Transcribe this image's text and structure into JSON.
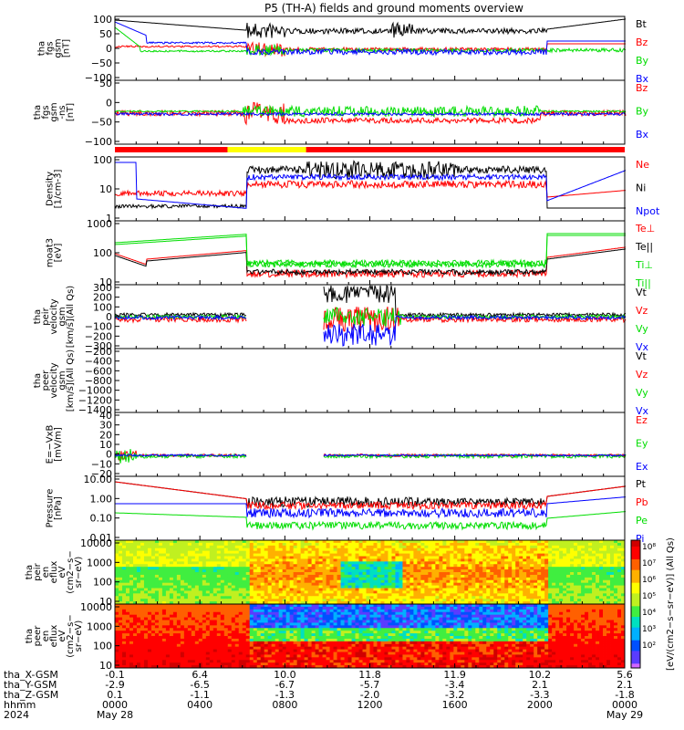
{
  "title": "P5 (TH-A) fields and ground moments overview",
  "colors": {
    "black": "#000000",
    "red": "#ff0000",
    "green": "#00dd00",
    "blue": "#0000ff",
    "yellow": "#ffff00"
  },
  "chart_data": {
    "type": "line",
    "x_axis": {
      "time_label": "hhmm",
      "year": "2024",
      "ticks": [
        "0000",
        "0400",
        "0800",
        "1200",
        "1600",
        "2000",
        "0000"
      ],
      "dates": [
        "May 28",
        "",
        "",
        "",
        "",
        "",
        "May 29"
      ],
      "ephemeris": [
        {
          "name": "tha_X-GSM",
          "values": [
            "-0.1",
            "6.4",
            "10.0",
            "11.8",
            "11.9",
            "10.2",
            "5.6"
          ]
        },
        {
          "name": "tha_Y-GSM",
          "values": [
            "-2.9",
            "-6.5",
            "-6.7",
            "-5.7",
            "-3.4",
            "2.1",
            "2.1"
          ]
        },
        {
          "name": "tha_Z-GSM",
          "values": [
            "0.1",
            "-1.1",
            "-1.3",
            "-2.0",
            "-3.2",
            "-3.3",
            "-1.8"
          ]
        }
      ]
    },
    "panels": [
      {
        "id": "fgs",
        "ylabel": [
          "tha",
          "fgs",
          "gsm",
          "[nT]"
        ],
        "ylim": [
          -100,
          100
        ],
        "ticks": [
          "100",
          "50",
          "0",
          "−50",
          "−100"
        ],
        "legend": [
          {
            "name": "Bt",
            "color": "black"
          },
          {
            "name": "Bz",
            "color": "red"
          },
          {
            "name": "By",
            "color": "green"
          },
          {
            "name": "Bx",
            "color": "blue"
          }
        ]
      },
      {
        "id": "fgs-ns",
        "ylabel": [
          "tha",
          "fgs",
          "gsm",
          "-ns",
          "[nT]"
        ],
        "ylim": [
          -130,
          80
        ],
        "ticks": [
          "50",
          "0",
          "−50",
          "−100"
        ],
        "legend": [
          {
            "name": "Bz",
            "color": "red"
          },
          {
            "name": "By",
            "color": "green"
          },
          {
            "name": "Bx",
            "color": "blue"
          }
        ]
      },
      {
        "id": "density",
        "ylabel": [
          "Density",
          "[1/cm-3]"
        ],
        "log": true,
        "ticks": [
          "100",
          "10",
          "1"
        ],
        "legend": [
          {
            "name": "Ne",
            "color": "red"
          },
          {
            "name": "Ni",
            "color": "black"
          },
          {
            "name": "Npot",
            "color": "blue"
          }
        ]
      },
      {
        "id": "temp",
        "ylabel": [
          "moat3",
          "[eV]"
        ],
        "log": true,
        "ticks": [
          "1000",
          "100",
          "10"
        ],
        "legend": [
          {
            "name": "Te⊥",
            "color": "red"
          },
          {
            "name": "Te||",
            "color": "black"
          },
          {
            "name": "Ti⊥",
            "color": "green"
          },
          {
            "name": "Ti||",
            "color": "green"
          }
        ]
      },
      {
        "id": "peir-vel",
        "ylabel": [
          "tha",
          "peir",
          "velocity",
          "gsm",
          "[km/s](All Qs)"
        ],
        "ylim": [
          -300,
          330
        ],
        "ticks": [
          "300",
          "200",
          "100",
          "0",
          "−100",
          "−200",
          "−300"
        ],
        "legend": [
          {
            "name": "Vt",
            "color": "black"
          },
          {
            "name": "Vz",
            "color": "red"
          },
          {
            "name": "Vy",
            "color": "green"
          },
          {
            "name": "Vx",
            "color": "blue"
          }
        ]
      },
      {
        "id": "peer-vel",
        "ylabel": [
          "tha",
          "peer",
          "velocity",
          "gsm",
          "[km/s](All Qs)"
        ],
        "ylim": [
          -1500,
          -150
        ],
        "ticks": [
          "−200",
          "−400",
          "−600",
          "−800",
          "−1000",
          "−1200",
          "−1400"
        ],
        "legend": [
          {
            "name": "Vt",
            "color": "black"
          },
          {
            "name": "Vz",
            "color": "red"
          },
          {
            "name": "Vy",
            "color": "green"
          },
          {
            "name": "Vx",
            "color": "blue"
          }
        ]
      },
      {
        "id": "efield",
        "ylabel": [
          "E=−VxB",
          "[mV/m]"
        ],
        "ylim": [
          -20,
          40
        ],
        "ticks": [
          "40",
          "30",
          "20",
          "10",
          "0",
          "−10",
          "−20"
        ],
        "legend": [
          {
            "name": "Ez",
            "color": "red"
          },
          {
            "name": "Ey",
            "color": "green"
          },
          {
            "name": "Ex",
            "color": "blue"
          }
        ]
      },
      {
        "id": "pressure",
        "ylabel": [
          "Pressure",
          "[nPa]"
        ],
        "log": true,
        "ticks": [
          "10.00",
          "1.00",
          "0.10",
          "0.01"
        ],
        "legend": [
          {
            "name": "Pt",
            "color": "black"
          },
          {
            "name": "Pb",
            "color": "red"
          },
          {
            "name": "Pe",
            "color": "green"
          },
          {
            "name": "Pi",
            "color": "blue"
          }
        ]
      },
      {
        "id": "peir-spec",
        "type": "heatmap",
        "ylabel": [
          "tha",
          "peir",
          "en",
          "eflux",
          "eV",
          "(cm2−s−",
          "sr−eV)"
        ],
        "log": true,
        "ticks": [
          "10000",
          "1000",
          "100",
          "10"
        ]
      },
      {
        "id": "peer-spec",
        "type": "heatmap",
        "ylabel": [
          "tha",
          "peer",
          "en",
          "eflux",
          "eV",
          "(cm2−s−",
          "sr−eV)"
        ],
        "log": true,
        "ticks": [
          "10000",
          "1000",
          "100",
          "10"
        ]
      }
    ],
    "colorbar": {
      "label": "[eV/(cm2−s−sr−eV)] (All Qs)",
      "ticks": [
        "10⁸",
        "10⁷",
        "10⁶",
        "10⁵",
        "10⁴",
        "10³",
        "10²"
      ]
    }
  }
}
